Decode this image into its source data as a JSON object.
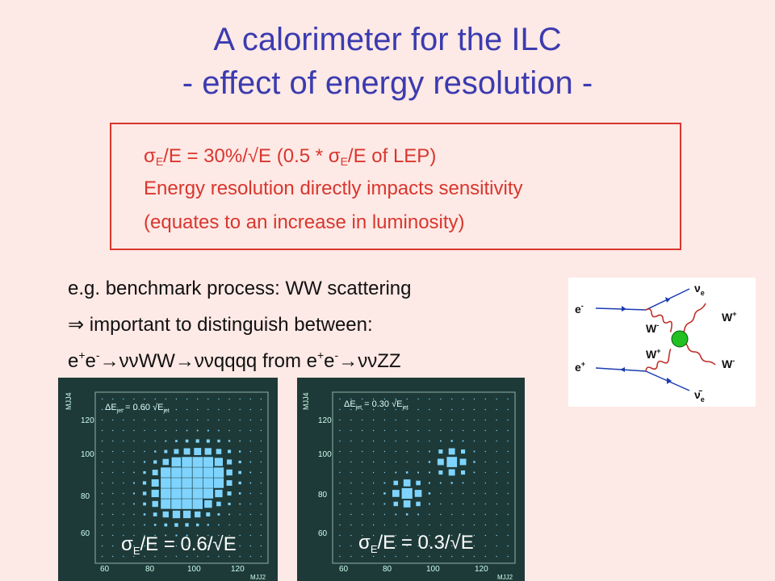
{
  "title_line1": "A calorimeter for the ILC",
  "title_line2": "- effect of energy resolution -",
  "box": {
    "line1_sigma": "σ",
    "line1_sub": "E",
    "line1_a": "/E  = 30%/√E (0.5 * ",
    "line1_sigma2": "σ",
    "line1_sub2": "E",
    "line1_b": "/E  of LEP)",
    "line2": "Energy resolution directly impacts sensitivity",
    "line3": "(equates to an increase in luminosity)"
  },
  "body": {
    "line1": "e.g. benchmark process: WW scattering",
    "line2": "⇒ important to distinguish between:",
    "line3_parts": [
      "e",
      "+",
      "e",
      "-",
      "→ννWW→ννqqqq  from e",
      "+",
      "e",
      "-",
      "→ννZZ"
    ]
  },
  "diagram": {
    "labels": {
      "e_minus": "e",
      "e_minus_sup": "-",
      "e_plus": "e",
      "e_plus_sup": "+",
      "nu_e": "ν",
      "nu_e_sub": "e",
      "nubar_e": "ν̄",
      "nubar_e_sub": "e",
      "w_minus_in": "W",
      "w_minus_in_sup": "-",
      "w_plus_in": "W",
      "w_plus_in_sup": "+",
      "w_plus_out": "W",
      "w_plus_out_sup": "+",
      "w_minus_out": "W",
      "w_minus_out_sup": "-"
    },
    "blob_color": "#22c022"
  },
  "plots": [
    {
      "ylabel": "MJJ4",
      "xlabel": "MJJ2",
      "top_label": "ΔE",
      "top_label_sub": "jet",
      "top_label_rest": " = 0.60 √E",
      "top_label_sub2": "jet",
      "big_label": "σ",
      "big_label_sub": "E",
      "big_label_rest": "/E = 0.6/√E",
      "yticks": [
        "120",
        "100",
        "80",
        "60"
      ],
      "xticks": [
        "60",
        "80",
        "100",
        "120"
      ]
    },
    {
      "ylabel": "MJJ4",
      "xlabel": "MJJ2",
      "top_label": "ΔE",
      "top_label_sub": "jet",
      "top_label_rest": " = 0.30 √E",
      "top_label_sub2": "jet",
      "big_label": "σ",
      "big_label_sub": "E",
      "big_label_rest": "/E = 0.3/√E",
      "yticks": [
        "120",
        "100",
        "80",
        "60"
      ],
      "xticks": [
        "60",
        "80",
        "100",
        "120"
      ]
    }
  ],
  "colors": {
    "title": "#3b3bb0",
    "box_border": "#d9362e",
    "box_text": "#d9362e",
    "background": "#fde9e5",
    "plot_bg": "#1e3a38",
    "plot_cells": "#7fd4ff"
  }
}
